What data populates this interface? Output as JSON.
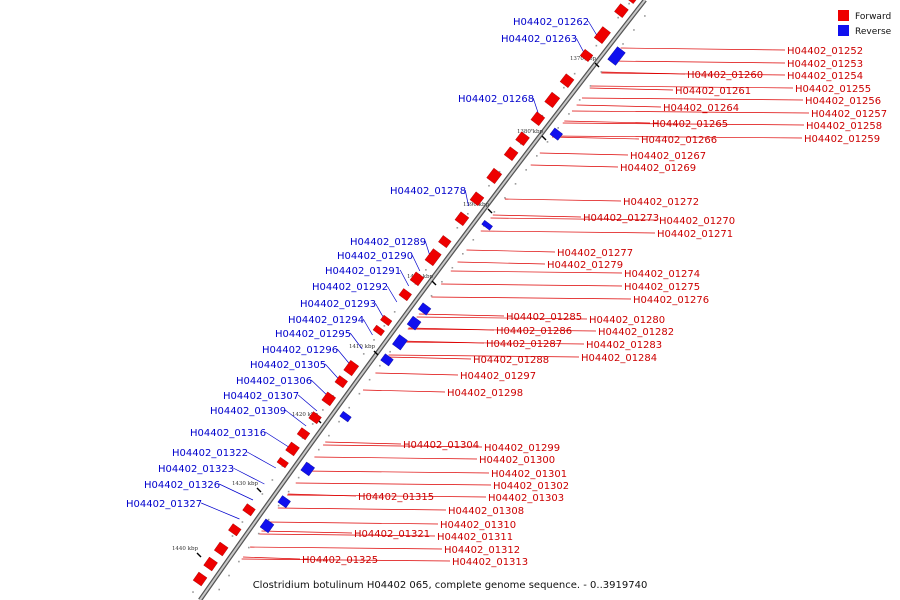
{
  "caption": "Clostridium botulinum H04402 065, complete genome sequence. - 0..3919740",
  "legend": [
    {
      "label": "Forward",
      "color": "#ee0000"
    },
    {
      "label": "Reverse",
      "color": "#1010ee"
    }
  ],
  "colors": {
    "forward": "#ee0000",
    "reverse": "#1010ee",
    "backbone": "#888888"
  },
  "kbp_labels": [
    "1370 kbp",
    "1380 kbp",
    "1390 kbp",
    "1400 kbp",
    "1410 kbp",
    "1420 kbp",
    "1430 kbp",
    "1440 kbp"
  ],
  "forward_labels": [
    "H04402_01252",
    "H04402_01253",
    "H04402_01254",
    "H04402_01255",
    "H04402_01256",
    "H04402_01257",
    "H04402_01258",
    "H04402_01259",
    "H04402_01260",
    "H04402_01261",
    "H04402_01264",
    "H04402_01265",
    "H04402_01266",
    "H04402_01267",
    "H04402_01269",
    "H04402_01272",
    "H04402_01273",
    "H04402_01270",
    "H04402_01271",
    "H04402_01277",
    "H04402_01279",
    "H04402_01274",
    "H04402_01275",
    "H04402_01276",
    "H04402_01285",
    "H04402_01280",
    "H04402_01286",
    "H04402_01282",
    "H04402_01287",
    "H04402_01283",
    "H04402_01288",
    "H04402_01284",
    "H04402_01297",
    "H04402_01298",
    "H04402_01304",
    "H04402_01299",
    "H04402_01300",
    "H04402_01301",
    "H04402_01302",
    "H04402_01315",
    "H04402_01303",
    "H04402_01308",
    "H04402_01310",
    "H04402_01321",
    "H04402_01311",
    "H04402_01312",
    "H04402_01313",
    "H04402_01325"
  ],
  "reverse_labels": [
    "H04402_01262",
    "H04402_01263",
    "H04402_01268",
    "H04402_01278",
    "H04402_01289",
    "H04402_01290",
    "H04402_01291",
    "H04402_01292",
    "H04402_01293",
    "H04402_01294",
    "H04402_01295",
    "H04402_01296",
    "H04402_01305",
    "H04402_01306",
    "H04402_01307",
    "H04402_01309",
    "H04402_01316",
    "H04402_01322",
    "H04402_01323",
    "H04402_01326",
    "H04402_01327"
  ]
}
